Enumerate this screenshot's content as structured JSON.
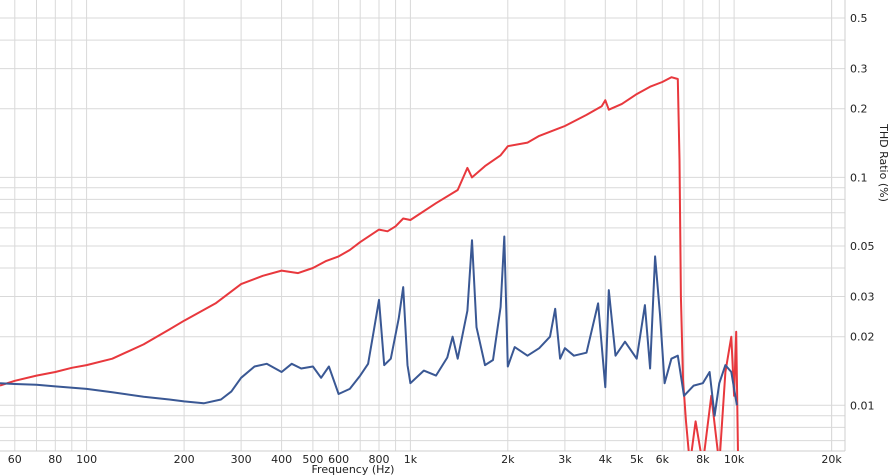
{
  "chart_data": {
    "type": "line",
    "title": "",
    "xlabel": "Frequency (Hz)",
    "ylabel": "THD Ratio (%)",
    "x_scale": "log",
    "y_scale": "log",
    "xlim": [
      54,
      22000
    ],
    "ylim": [
      0.0063,
      0.6
    ],
    "grid": true,
    "legend": "none",
    "x_tick_labels": [
      {
        "value": 60,
        "label": "60"
      },
      {
        "value": 80,
        "label": "80"
      },
      {
        "value": 100,
        "label": "100"
      },
      {
        "value": 200,
        "label": "200"
      },
      {
        "value": 300,
        "label": "300"
      },
      {
        "value": 400,
        "label": "400"
      },
      {
        "value": 500,
        "label": "500"
      },
      {
        "value": 600,
        "label": "600"
      },
      {
        "value": 800,
        "label": "800"
      },
      {
        "value": 1000,
        "label": "1k"
      },
      {
        "value": 2000,
        "label": "2k"
      },
      {
        "value": 3000,
        "label": "3k"
      },
      {
        "value": 4000,
        "label": "4k"
      },
      {
        "value": 5000,
        "label": "5k"
      },
      {
        "value": 6000,
        "label": "6k"
      },
      {
        "value": 8000,
        "label": "8k"
      },
      {
        "value": 10000,
        "label": "10k"
      },
      {
        "value": 20000,
        "label": "20k"
      }
    ],
    "y_tick_labels": [
      {
        "value": 0.5,
        "label": "0.5"
      },
      {
        "value": 0.3,
        "label": "0.3"
      },
      {
        "value": 0.2,
        "label": "0.2"
      },
      {
        "value": 0.1,
        "label": "0.1"
      },
      {
        "value": 0.05,
        "label": "0.05"
      },
      {
        "value": 0.03,
        "label": "0.03"
      },
      {
        "value": 0.02,
        "label": "0.02"
      },
      {
        "value": 0.01,
        "label": "0.01"
      }
    ],
    "series": [
      {
        "color": "#e8383d",
        "points": [
          [
            54,
            0.0122
          ],
          [
            60,
            0.0128
          ],
          [
            70,
            0.0135
          ],
          [
            80,
            0.014
          ],
          [
            90,
            0.0146
          ],
          [
            100,
            0.015
          ],
          [
            120,
            0.016
          ],
          [
            150,
            0.0185
          ],
          [
            180,
            0.0215
          ],
          [
            200,
            0.0235
          ],
          [
            250,
            0.028
          ],
          [
            300,
            0.034
          ],
          [
            350,
            0.037
          ],
          [
            400,
            0.039
          ],
          [
            450,
            0.038
          ],
          [
            500,
            0.04
          ],
          [
            550,
            0.043
          ],
          [
            600,
            0.045
          ],
          [
            650,
            0.048
          ],
          [
            700,
            0.052
          ],
          [
            800,
            0.059
          ],
          [
            850,
            0.058
          ],
          [
            900,
            0.061
          ],
          [
            950,
            0.066
          ],
          [
            1000,
            0.065
          ],
          [
            1200,
            0.077
          ],
          [
            1400,
            0.088
          ],
          [
            1500,
            0.11
          ],
          [
            1550,
            0.1
          ],
          [
            1700,
            0.112
          ],
          [
            1900,
            0.125
          ],
          [
            2000,
            0.137
          ],
          [
            2300,
            0.142
          ],
          [
            2500,
            0.152
          ],
          [
            3000,
            0.168
          ],
          [
            3500,
            0.188
          ],
          [
            3900,
            0.205
          ],
          [
            4000,
            0.218
          ],
          [
            4100,
            0.198
          ],
          [
            4500,
            0.21
          ],
          [
            5000,
            0.232
          ],
          [
            5500,
            0.25
          ],
          [
            6000,
            0.262
          ],
          [
            6400,
            0.275
          ],
          [
            6700,
            0.27
          ],
          [
            6780,
            0.12
          ],
          [
            6850,
            0.03
          ],
          [
            6950,
            0.013
          ],
          [
            7100,
            0.0085
          ],
          [
            7300,
            0.0055
          ],
          [
            7600,
            0.0085
          ],
          [
            8000,
            0.0055
          ],
          [
            8500,
            0.011
          ],
          [
            9000,
            0.0055
          ],
          [
            9400,
            0.014
          ],
          [
            9800,
            0.02
          ],
          [
            10000,
            0.011
          ],
          [
            10150,
            0.021
          ],
          [
            10300,
            0.005
          ]
        ]
      },
      {
        "color": "#3a5894",
        "points": [
          [
            54,
            0.0125
          ],
          [
            60,
            0.0124
          ],
          [
            70,
            0.0123
          ],
          [
            80,
            0.0121
          ],
          [
            100,
            0.0118
          ],
          [
            120,
            0.0114
          ],
          [
            150,
            0.0109
          ],
          [
            180,
            0.0106
          ],
          [
            200,
            0.0104
          ],
          [
            230,
            0.0102
          ],
          [
            260,
            0.0106
          ],
          [
            280,
            0.0115
          ],
          [
            300,
            0.0132
          ],
          [
            330,
            0.0148
          ],
          [
            360,
            0.0152
          ],
          [
            400,
            0.014
          ],
          [
            430,
            0.0152
          ],
          [
            460,
            0.0145
          ],
          [
            500,
            0.0148
          ],
          [
            530,
            0.0132
          ],
          [
            560,
            0.0148
          ],
          [
            600,
            0.0112
          ],
          [
            650,
            0.0118
          ],
          [
            700,
            0.0135
          ],
          [
            740,
            0.0152
          ],
          [
            770,
            0.021
          ],
          [
            800,
            0.029
          ],
          [
            830,
            0.015
          ],
          [
            870,
            0.016
          ],
          [
            920,
            0.024
          ],
          [
            950,
            0.033
          ],
          [
            980,
            0.015
          ],
          [
            1000,
            0.0125
          ],
          [
            1100,
            0.0142
          ],
          [
            1200,
            0.0135
          ],
          [
            1300,
            0.0162
          ],
          [
            1350,
            0.02
          ],
          [
            1400,
            0.016
          ],
          [
            1500,
            0.026
          ],
          [
            1550,
            0.053
          ],
          [
            1600,
            0.022
          ],
          [
            1700,
            0.015
          ],
          [
            1800,
            0.0158
          ],
          [
            1900,
            0.027
          ],
          [
            1950,
            0.055
          ],
          [
            2000,
            0.0148
          ],
          [
            2100,
            0.018
          ],
          [
            2300,
            0.0165
          ],
          [
            2500,
            0.0178
          ],
          [
            2700,
            0.02
          ],
          [
            2800,
            0.0265
          ],
          [
            2900,
            0.016
          ],
          [
            3000,
            0.0178
          ],
          [
            3200,
            0.0165
          ],
          [
            3500,
            0.017
          ],
          [
            3800,
            0.028
          ],
          [
            4000,
            0.012
          ],
          [
            4100,
            0.032
          ],
          [
            4300,
            0.0165
          ],
          [
            4600,
            0.019
          ],
          [
            5000,
            0.016
          ],
          [
            5300,
            0.0275
          ],
          [
            5500,
            0.0145
          ],
          [
            5700,
            0.045
          ],
          [
            5900,
            0.025
          ],
          [
            6100,
            0.0125
          ],
          [
            6400,
            0.016
          ],
          [
            6700,
            0.0165
          ],
          [
            7000,
            0.011
          ],
          [
            7500,
            0.0122
          ],
          [
            8000,
            0.0125
          ],
          [
            8400,
            0.014
          ],
          [
            8700,
            0.009
          ],
          [
            9000,
            0.0125
          ],
          [
            9400,
            0.015
          ],
          [
            9800,
            0.014
          ],
          [
            10200,
            0.01
          ]
        ]
      }
    ]
  }
}
